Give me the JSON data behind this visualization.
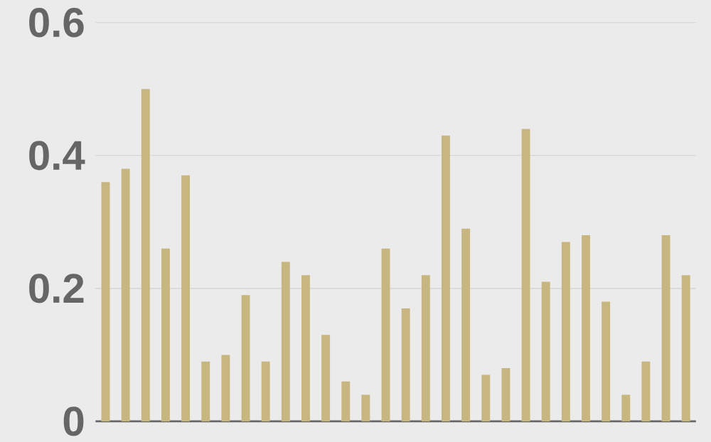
{
  "chart_data": {
    "type": "bar",
    "categories": [
      null,
      null,
      null,
      null,
      null,
      null,
      null,
      null,
      null,
      null,
      null,
      null,
      null,
      null,
      null,
      null,
      null,
      null,
      null,
      null,
      null,
      null,
      null,
      null,
      null,
      null,
      null,
      null,
      null,
      null
    ],
    "values": [
      0.36,
      0.38,
      0.5,
      0.26,
      0.37,
      0.09,
      0.1,
      0.19,
      0.09,
      0.24,
      0.22,
      0.13,
      0.06,
      0.04,
      0.26,
      0.17,
      0.22,
      0.43,
      0.29,
      0.07,
      0.08,
      0.44,
      0.21,
      0.27,
      0.28,
      0.18,
      0.04,
      0.09,
      0.28,
      0.22
    ],
    "color": "#c8b680",
    "ylim": [
      0,
      0.6
    ],
    "yticks": [
      0,
      0.2,
      0.4,
      0.6
    ],
    "grid": "y",
    "tick_labels": "y"
  }
}
